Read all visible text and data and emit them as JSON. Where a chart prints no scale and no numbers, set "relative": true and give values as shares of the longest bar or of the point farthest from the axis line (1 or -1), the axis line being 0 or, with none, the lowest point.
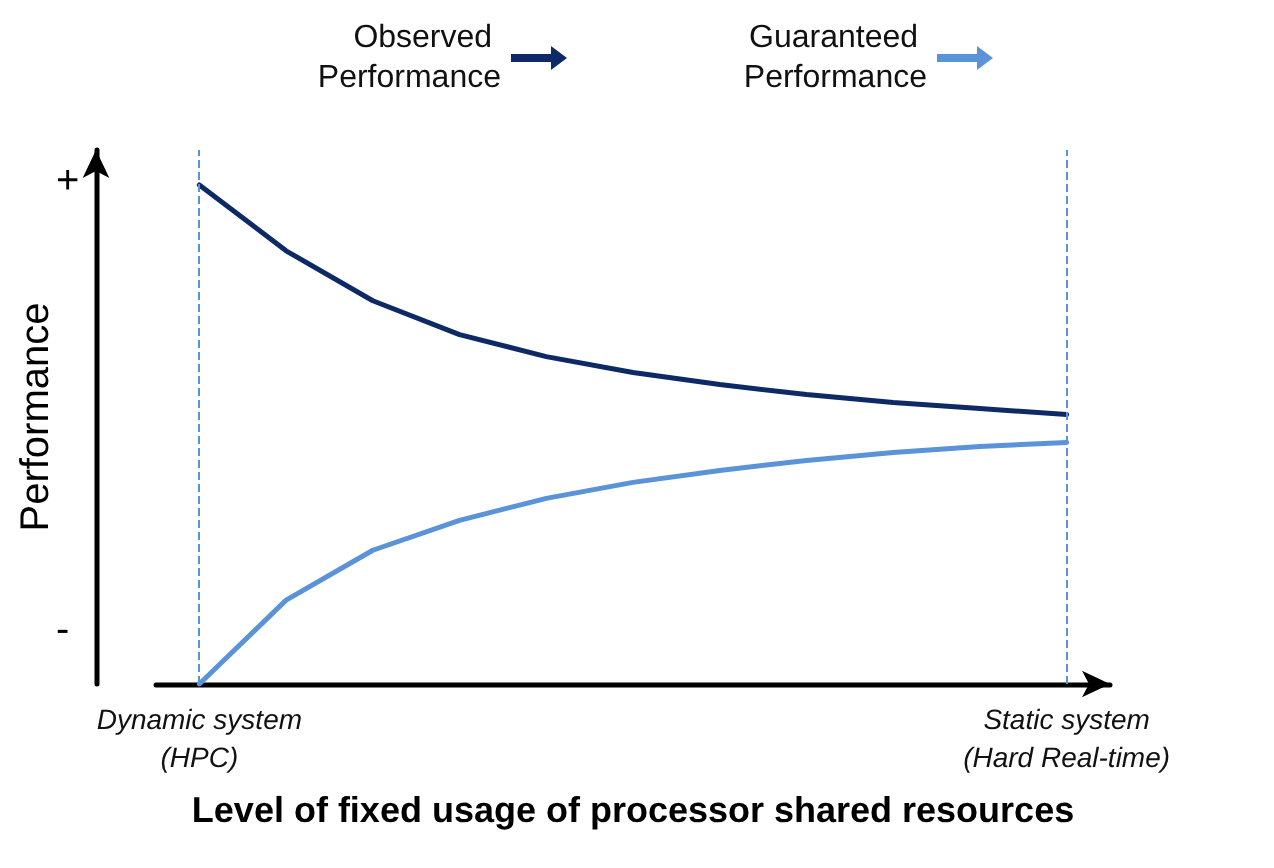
{
  "chart_data": {
    "type": "line",
    "relative": true,
    "xlabel": "Level of fixed usage of processor shared resources",
    "ylabel": "Performance",
    "categories": [
      "Dynamic system (HPC)",
      null,
      null,
      null,
      null,
      null,
      null,
      null,
      null,
      null,
      "Static system (Hard Real-time)"
    ],
    "series": [
      {
        "name": "Observed Performance",
        "color": "#0d2a66",
        "values": [
          1,
          0.868,
          0.768,
          0.7,
          0.656,
          0.624,
          0.6,
          0.58,
          0.564,
          0.552,
          0.54
        ]
      },
      {
        "name": "Guaranteed Performance",
        "color": "#5b93d8",
        "values": [
          0,
          0.168,
          0.268,
          0.328,
          0.372,
          0.404,
          0.428,
          0.448,
          0.464,
          0.476,
          0.484
        ]
      }
    ],
    "ref_lines": [
      {
        "axis": "x",
        "value": "Dynamic system (HPC)",
        "color": "#5b93d8",
        "line_style": "dashed"
      },
      {
        "axis": "x",
        "value": "Static system (Hard Real-time)",
        "color": "#5b93d8",
        "line_style": "dashed"
      }
    ],
    "annotations": [
      "+",
      "-"
    ],
    "legend": "top",
    "marker": "none",
    "line_style": "solid",
    "grid": false
  }
}
